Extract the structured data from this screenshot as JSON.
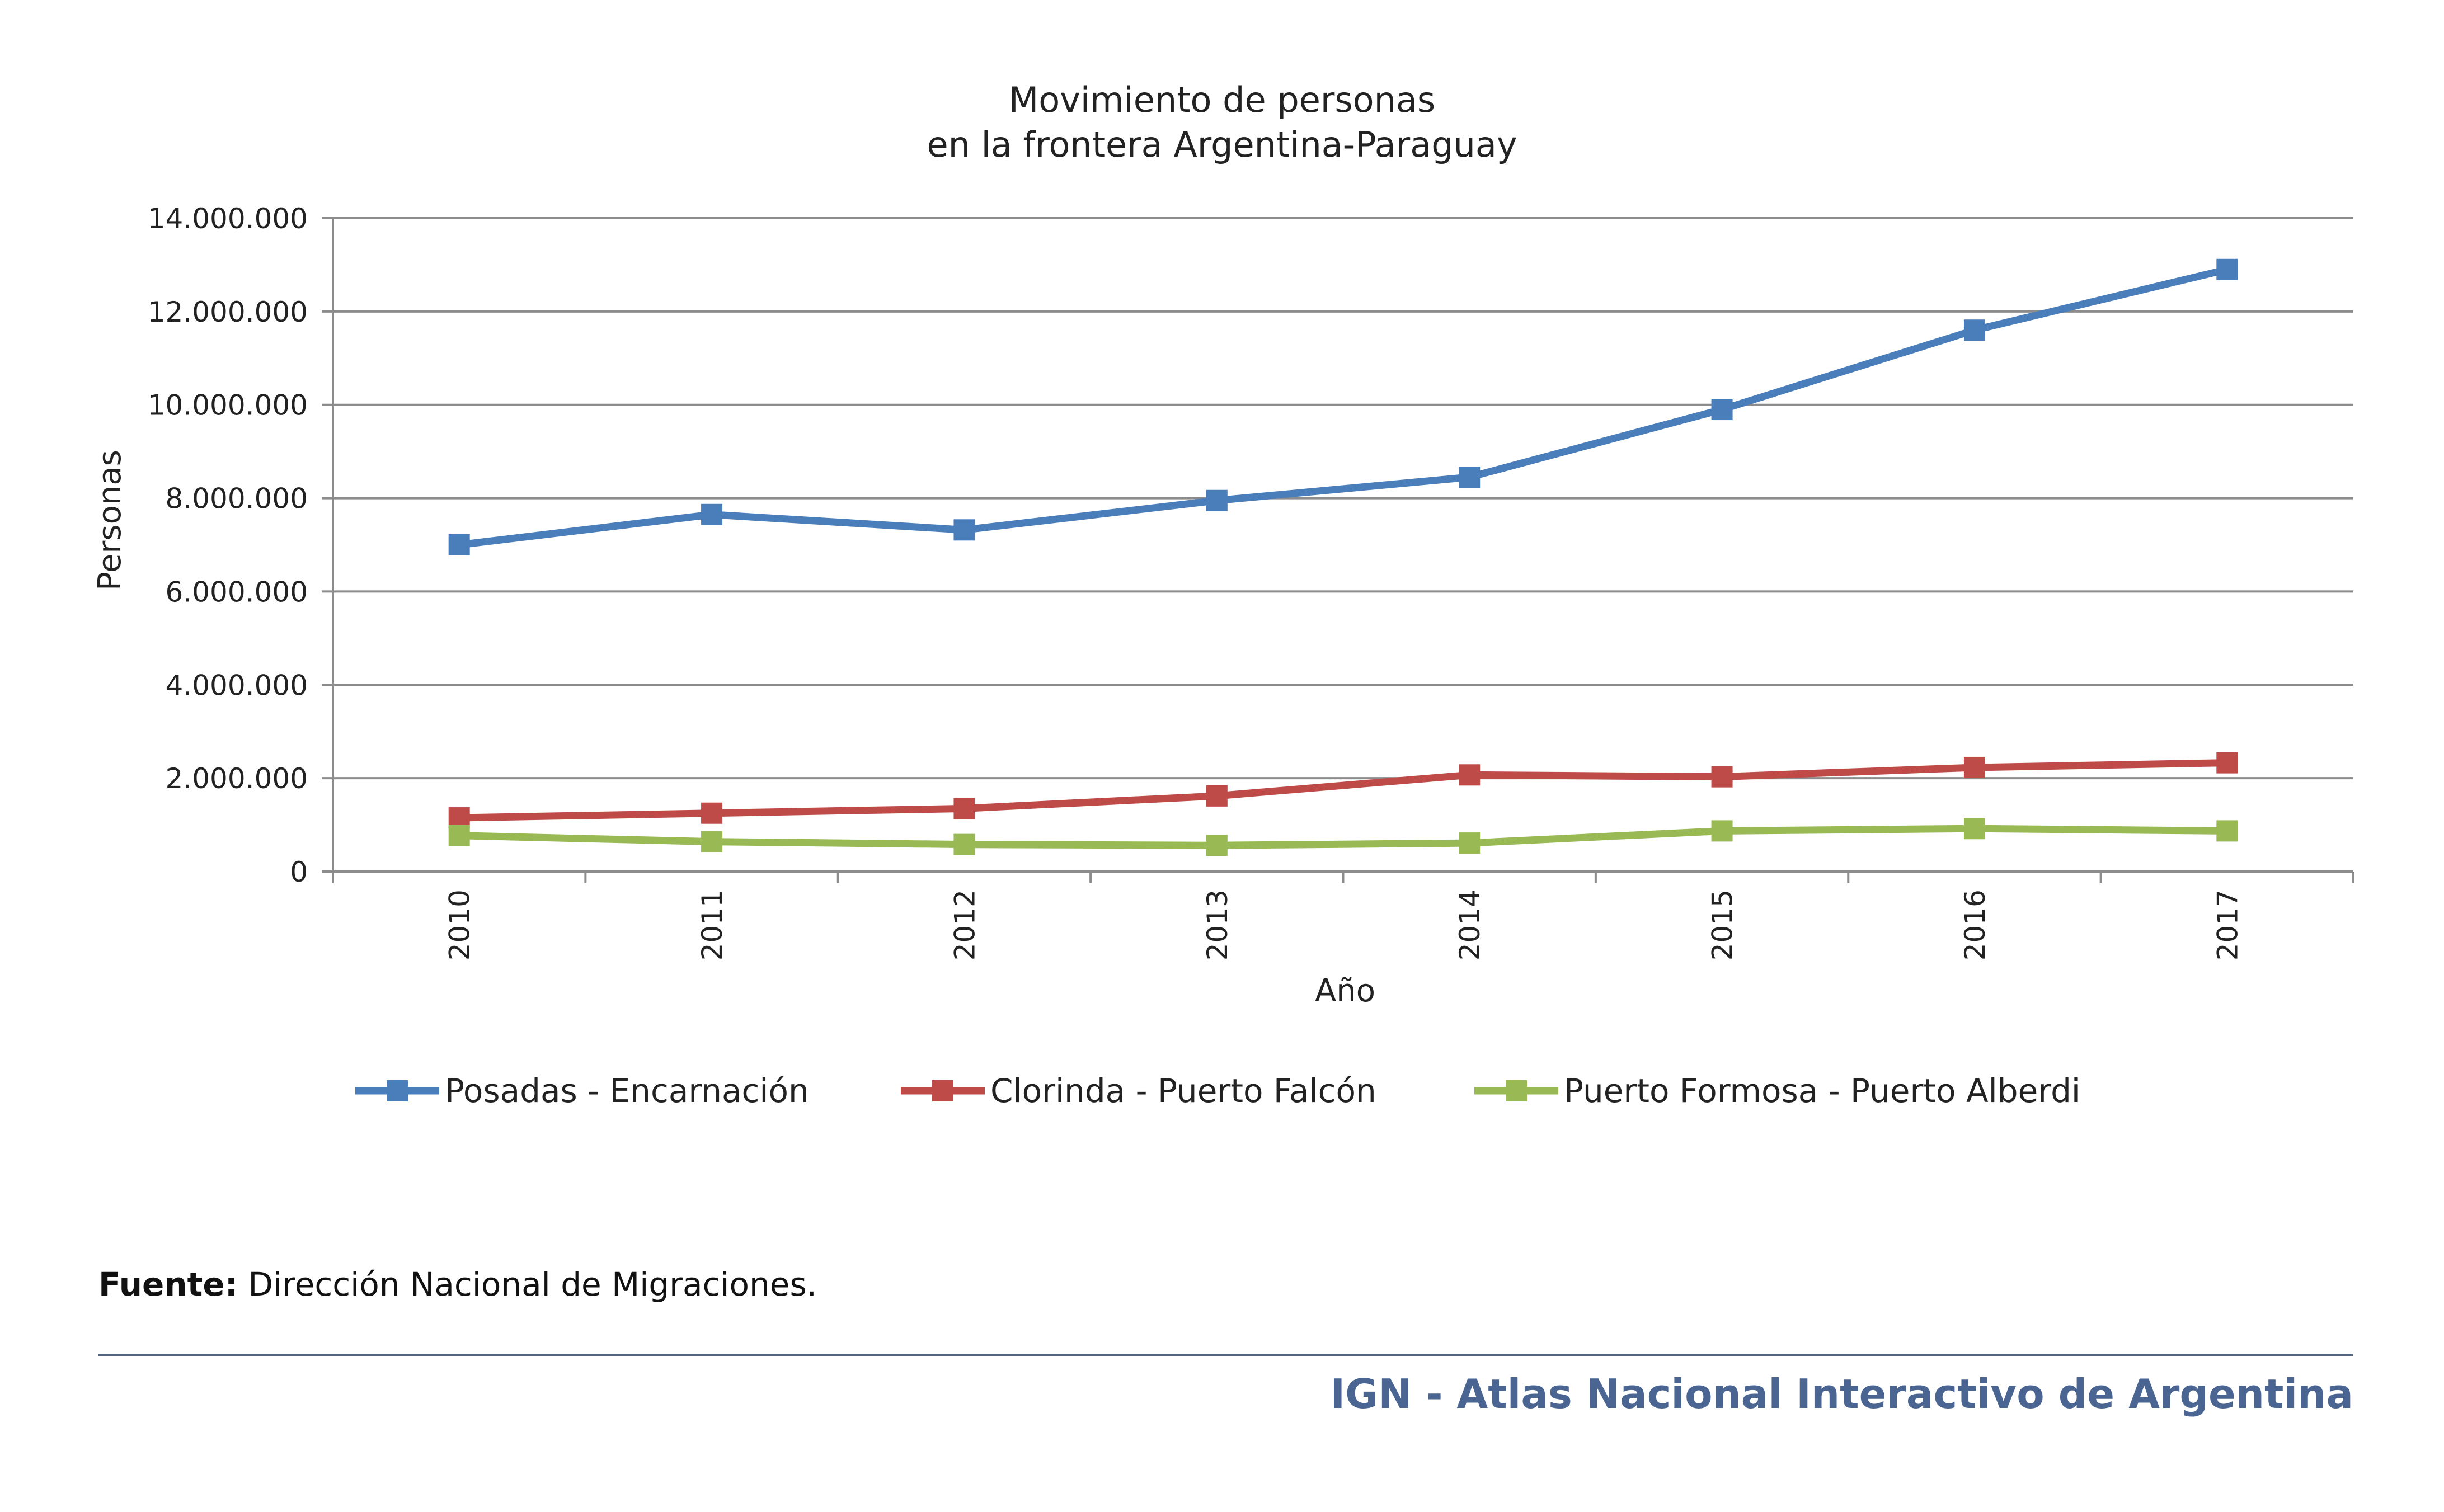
{
  "chart_data": {
    "type": "line",
    "title": [
      "Movimiento de personas",
      "en la frontera Argentina-Paraguay"
    ],
    "xlabel": "Año",
    "ylabel": "Personas",
    "categories": [
      "2010",
      "2011",
      "2012",
      "2013",
      "2014",
      "2015",
      "2016",
      "2017"
    ],
    "ylim": [
      0,
      14000000
    ],
    "yticks": [
      "0",
      "2.000.000",
      "4.000.000",
      "6.000.000",
      "8.000.000",
      "10.000.000",
      "12.000.000",
      "14.000.000"
    ],
    "ytick_values": [
      0,
      2000000,
      4000000,
      6000000,
      8000000,
      10000000,
      12000000,
      14000000
    ],
    "grid": true,
    "legend_position": "bottom",
    "series": [
      {
        "name": "Posadas - Encarnación",
        "color": "#4a7ebb",
        "values": [
          7000000,
          7650000,
          7320000,
          7950000,
          8450000,
          9900000,
          11600000,
          12900000
        ]
      },
      {
        "name": "Clorinda - Puerto Falcón",
        "color": "#be4b48",
        "values": [
          1150000,
          1250000,
          1350000,
          1620000,
          2070000,
          2030000,
          2230000,
          2330000
        ]
      },
      {
        "name": "Puerto Formosa - Puerto Alberdi",
        "color": "#98b954",
        "values": [
          770000,
          640000,
          580000,
          560000,
          610000,
          870000,
          920000,
          870000
        ]
      }
    ]
  },
  "source": {
    "label": "Fuente:",
    "text": " Dirección Nacional de Migraciones."
  },
  "footer": {
    "text": "IGN - Atlas Nacional Interactivo de Argentina"
  }
}
